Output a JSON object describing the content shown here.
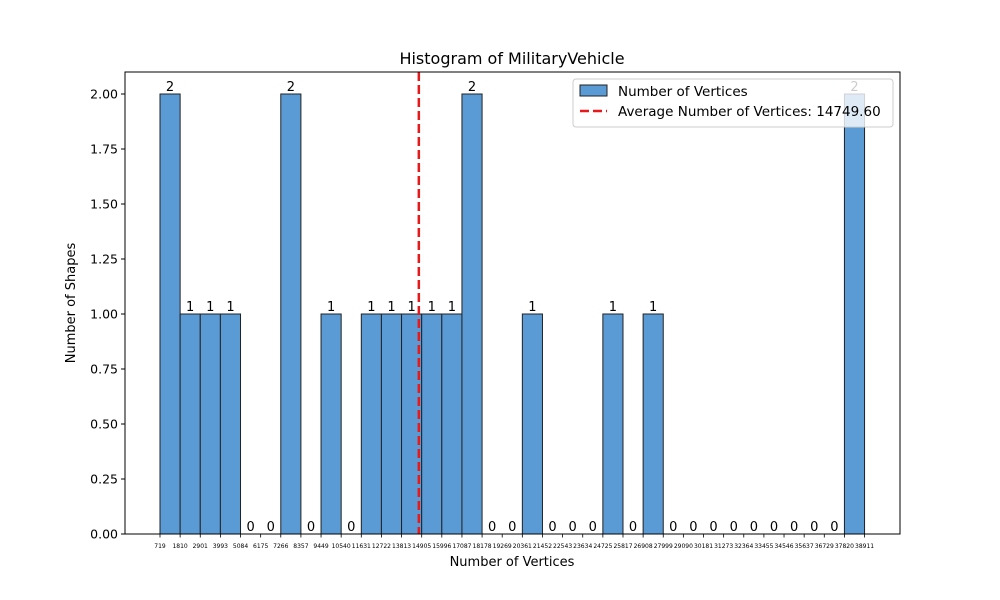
{
  "chart_data": {
    "type": "bar",
    "title": "Histogram of MilitaryVehicle",
    "xlabel": "Number of Vertices",
    "ylabel": "Number of Shapes",
    "ylim": [
      0,
      2.1
    ],
    "yticks": [
      "0.00",
      "0.25",
      "0.50",
      "0.75",
      "1.00",
      "1.25",
      "1.50",
      "1.75",
      "2.00"
    ],
    "bin_edges": [
      719,
      1810,
      2901,
      3993,
      5084,
      6175,
      7266,
      8357,
      9449,
      10540,
      11631,
      12722,
      13813,
      14905,
      15996,
      17087,
      18178,
      19269,
      20361,
      21452,
      22543,
      23634,
      24725,
      25817,
      26908,
      27999,
      29090,
      30181,
      31273,
      32364,
      33455,
      34546,
      35637,
      36729,
      37820,
      38911
    ],
    "counts": [
      2,
      1,
      1,
      1,
      0,
      0,
      2,
      0,
      1,
      0,
      1,
      1,
      1,
      1,
      1,
      2,
      0,
      0,
      1,
      0,
      0,
      0,
      1,
      0,
      1,
      0,
      0,
      0,
      0,
      0,
      0,
      0,
      0,
      0,
      2
    ],
    "average": 14749.6,
    "legend": {
      "position": "top-right",
      "bars_label": "Number of Vertices",
      "average_label": "Average Number of Vertices: 14749.60"
    },
    "colors": {
      "bar": "#5b9bd5",
      "bar_edge": "#222222",
      "average_line": "#e8191b"
    }
  }
}
